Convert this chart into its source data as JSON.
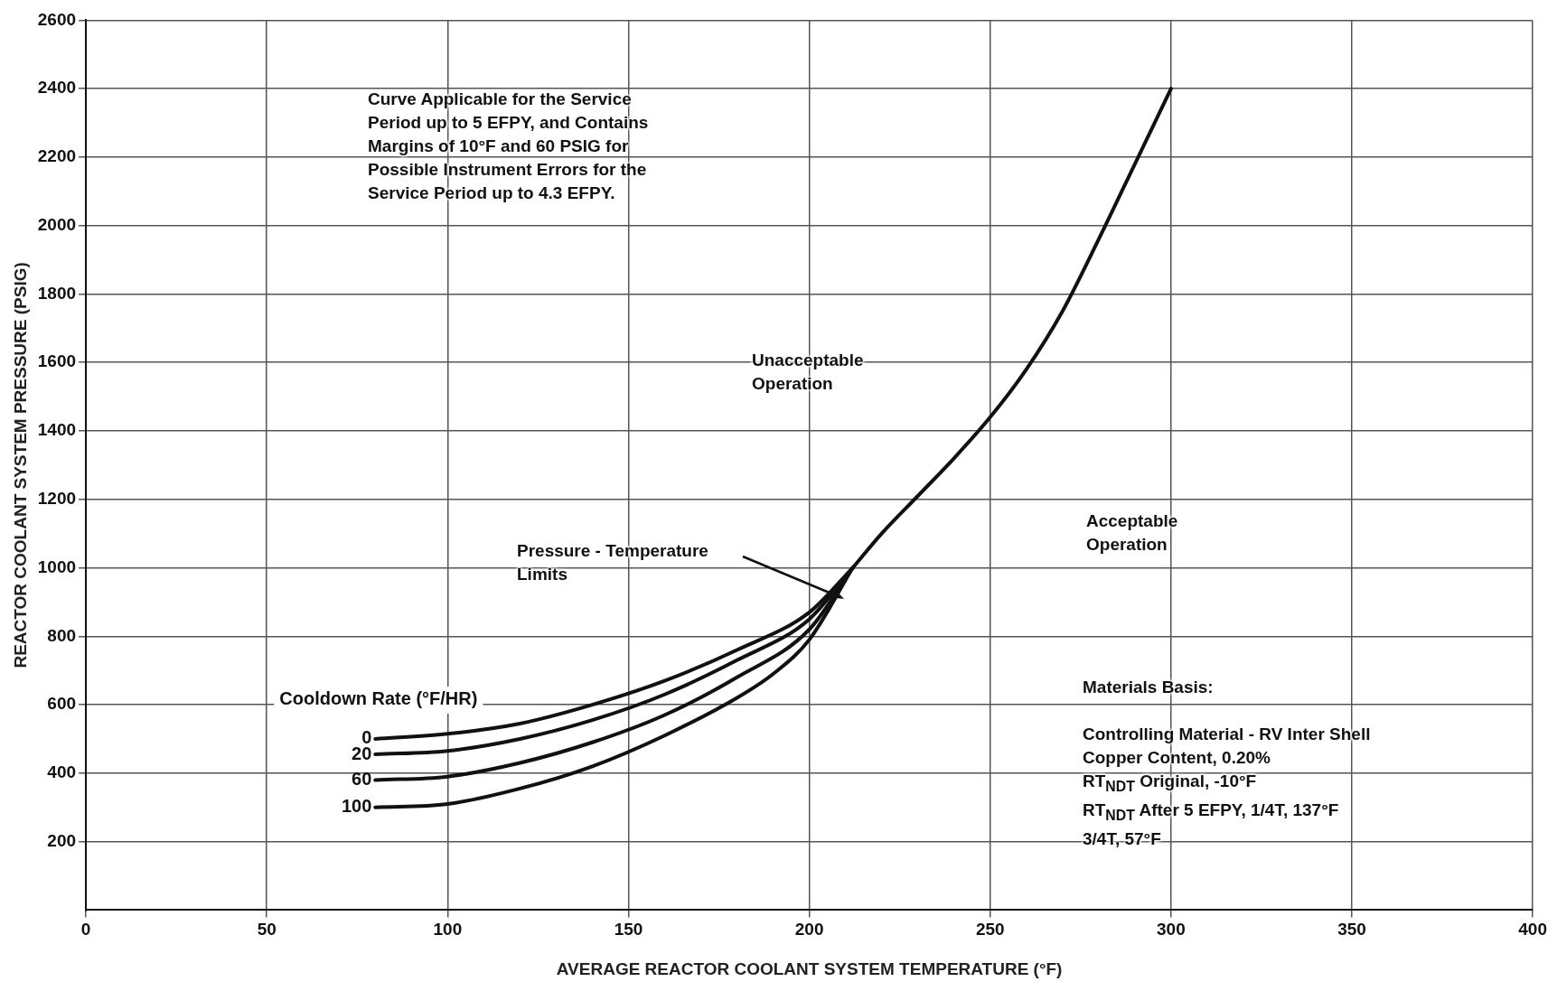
{
  "chart_data": {
    "type": "line",
    "xlabel": "AVERAGE REACTOR COOLANT SYSTEM TEMPERATURE (°F)",
    "ylabel": "REACTOR COOLANT SYSTEM PRESSURE (PSIG)",
    "legend_title": "Cooldown Rate (°F/HR)",
    "xlim": [
      0,
      400
    ],
    "xticks": [
      0,
      50,
      100,
      150,
      200,
      250,
      300,
      350,
      400
    ],
    "ylim": [
      0,
      2600
    ],
    "yticks": [
      200,
      400,
      600,
      800,
      1000,
      1200,
      1400,
      1600,
      1800,
      2000,
      2200,
      2400,
      2600
    ],
    "grid": true,
    "marker": "none",
    "line_style": "solid",
    "series": [
      {
        "name": "0",
        "color": "#111111",
        "x": [
          80,
          100,
          120,
          140,
          160,
          180,
          200,
          212
        ],
        "values": [
          500,
          515,
          545,
          600,
          670,
          760,
          870,
          1000
        ]
      },
      {
        "name": "20",
        "color": "#111111",
        "x": [
          80,
          100,
          120,
          140,
          160,
          180,
          200,
          212
        ],
        "values": [
          455,
          465,
          500,
          555,
          630,
          730,
          850,
          1000
        ]
      },
      {
        "name": "60",
        "color": "#111111",
        "x": [
          80,
          100,
          120,
          140,
          160,
          180,
          200,
          212
        ],
        "values": [
          380,
          390,
          430,
          490,
          570,
          680,
          820,
          1000
        ]
      },
      {
        "name": "100",
        "color": "#111111",
        "x": [
          80,
          100,
          120,
          140,
          160,
          180,
          190,
          200,
          212
        ],
        "values": [
          300,
          310,
          355,
          420,
          510,
          620,
          690,
          790,
          1000
        ]
      },
      {
        "color": "#111111",
        "x": [
          212,
          220,
          230,
          240,
          250,
          260,
          270,
          280,
          290,
          300
        ],
        "values": [
          1000,
          1100,
          1210,
          1320,
          1440,
          1580,
          1750,
          1960,
          2180,
          2400
        ]
      }
    ],
    "annotations": [
      "Curve Applicable for the Service\nPeriod up to 5 EFPY, and Contains\nMargins of 10°F and 60 PSIG for\nPossible Instrument Errors for the\nService Period up to 4.3 EFPY.",
      "Unacceptable\nOperation",
      "Pressure - Temperature\nLimits",
      "Acceptable\nOperation",
      "Materials Basis:\n\nControlling Material - RV Inter Shell\nCopper Content, 0.20%\nRT$_{NDT}$ Original, -10°F\nRT$_{NDT}$ After 5 EFPY, 1/4T, 137°F\n3/4T, 57°F"
    ]
  }
}
